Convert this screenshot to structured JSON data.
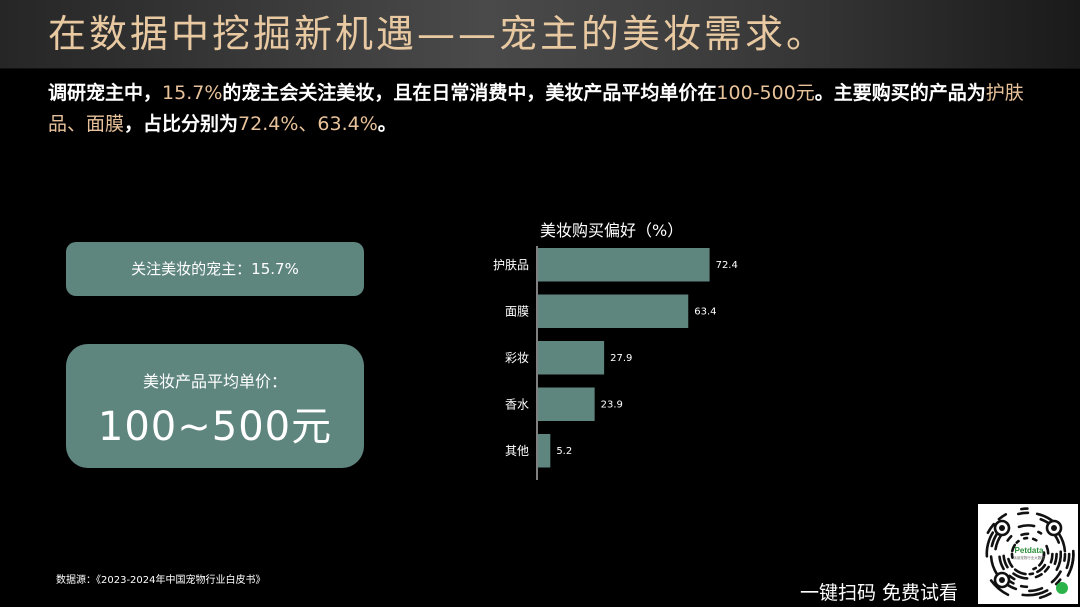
{
  "header": {
    "title": "在数据中挖掘新机遇——宠主的美妆需求。"
  },
  "intro": {
    "p1": "调研宠主中，",
    "h1": "15.7%",
    "p2": "的宠主会关注美妆，且在日常消费中，美妆产品平均单价在",
    "h2": "100-500元",
    "p3": "。主要购买的产品为",
    "h3": "护肤品、面膜",
    "p4": "，占比分别为",
    "h4": "72.4%、63.4%",
    "p5": "。"
  },
  "cards": {
    "follow": "关注美妆的宠主：15.7%",
    "price_label": "美妆产品平均单价：",
    "price_value": "100~500元"
  },
  "chart_data": {
    "type": "bar",
    "orientation": "horizontal",
    "title": "美妆购买偏好（%）",
    "categories": [
      "护肤品",
      "面膜",
      "彩妆",
      "香水",
      "其他"
    ],
    "values": [
      72.4,
      63.4,
      27.9,
      23.9,
      5.2
    ],
    "xlim": [
      0,
      100
    ],
    "grid": false,
    "bar_color": "#5e857e"
  },
  "footer": {
    "source": "数据源：《2023-2024年中国宠物行业白皮书》",
    "cta": "一键扫码 免费试看",
    "qr_brand": "Petdata",
    "qr_brand_sub": "派读宠物行业大数据"
  },
  "colors": {
    "accent": "#e8c29a",
    "card": "#5e857e",
    "background": "#000000"
  }
}
